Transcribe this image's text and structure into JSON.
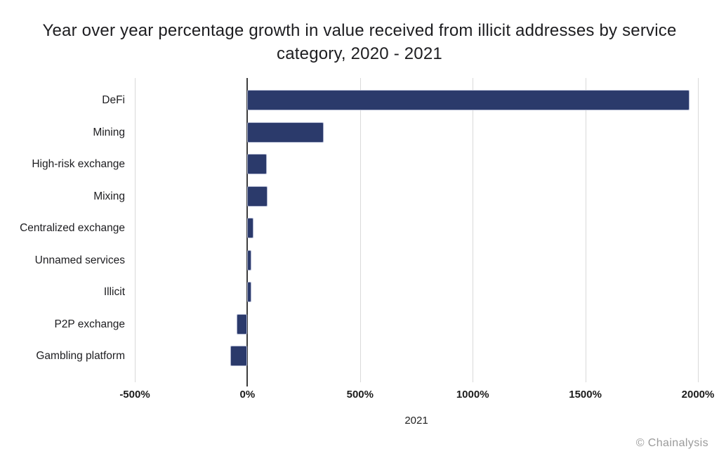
{
  "title": {
    "full": "Year over year percentage growth in value received from illicit addresses by service category, 2020 - 2021",
    "line1": "Year over year percentage growth in value received from illicit addresses by service",
    "line2": "category, 2020 - 2021"
  },
  "chart_data": {
    "type": "bar",
    "orientation": "horizontal",
    "title": "Year over year percentage growth in value received from illicit addresses by service category, 2020 - 2021",
    "categories": [
      "DeFi",
      "Mining",
      "High-risk exchange",
      "Mixing",
      "Centralized exchange",
      "Unnamed services",
      "Illicit",
      "P2P exchange",
      "Gambling platform"
    ],
    "values": [
      1964,
      340,
      85,
      88,
      27,
      18,
      17,
      -48,
      -75
    ],
    "value_unit": "%",
    "xlabel": "2021",
    "ylabel": "",
    "xlim": [
      -500,
      2000
    ],
    "xticks": [
      -500,
      0,
      500,
      1000,
      1500,
      2000
    ],
    "xtick_labels": [
      "-500%",
      "0%",
      "500%",
      "1000%",
      "1500%",
      "2000%"
    ],
    "grid": "vertical-gridlines-on",
    "legend": "none",
    "series_name": "2021"
  },
  "footer": {
    "copyright": "© Chainalysis"
  },
  "colors": {
    "bar": "#2b3a6b",
    "bar_border": "#aab1cc",
    "gridline": "#d9d9d9",
    "zero_line": "#3d3d3d",
    "title_text": "#1d1d20",
    "label_text": "#1d1d20",
    "tick_text": "#1c1c1c",
    "footer_text": "#9a9a9a",
    "background": "#ffffff"
  }
}
